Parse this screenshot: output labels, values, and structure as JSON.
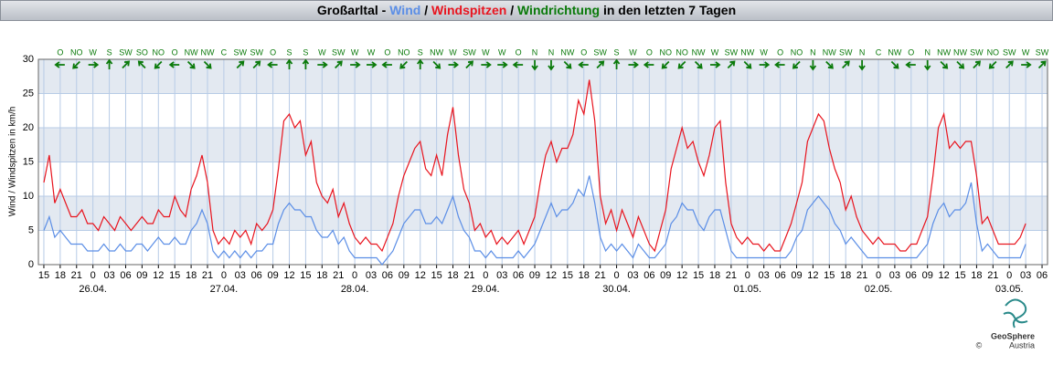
{
  "chart_data": {
    "type": "line",
    "title_prefix": "Großarltal -",
    "title_separator": "/",
    "title_suffix": "in den letzten 7 Tagen",
    "y_label": "Wind / Windspitzen in km/h",
    "logo": [
      "GeoSphere",
      "Austria"
    ],
    "copyright": "©",
    "x": [
      "25.04. 15:00",
      "25.04. 16:00",
      "25.04. 17:00",
      "25.04. 18:00",
      "25.04. 19:00",
      "25.04. 20:00",
      "25.04. 21:00",
      "25.04. 22:00",
      "25.04. 23:00",
      "26.04. 00:00",
      "26.04. 01:00",
      "26.04. 02:00",
      "26.04. 03:00",
      "26.04. 04:00",
      "26.04. 05:00",
      "26.04. 06:00",
      "26.04. 07:00",
      "26.04. 08:00",
      "26.04. 09:00",
      "26.04. 10:00",
      "26.04. 11:00",
      "26.04. 12:00",
      "26.04. 13:00",
      "26.04. 14:00",
      "26.04. 15:00",
      "26.04. 16:00",
      "26.04. 17:00",
      "26.04. 18:00",
      "26.04. 19:00",
      "26.04. 20:00",
      "26.04. 21:00",
      "26.04. 22:00",
      "26.04. 23:00",
      "27.04. 00:00",
      "27.04. 01:00",
      "27.04. 02:00",
      "27.04. 03:00",
      "27.04. 04:00",
      "27.04. 05:00",
      "27.04. 06:00",
      "27.04. 07:00",
      "27.04. 08:00",
      "27.04. 09:00",
      "27.04. 10:00",
      "27.04. 11:00",
      "27.04. 12:00",
      "27.04. 13:00",
      "27.04. 14:00",
      "27.04. 15:00",
      "27.04. 16:00",
      "27.04. 17:00",
      "27.04. 18:00",
      "27.04. 19:00",
      "27.04. 20:00",
      "27.04. 21:00",
      "27.04. 22:00",
      "27.04. 23:00",
      "28.04. 00:00",
      "28.04. 01:00",
      "28.04. 02:00",
      "28.04. 03:00",
      "28.04. 04:00",
      "28.04. 05:00",
      "28.04. 06:00",
      "28.04. 07:00",
      "28.04. 08:00",
      "28.04. 09:00",
      "28.04. 10:00",
      "28.04. 11:00",
      "28.04. 12:00",
      "28.04. 13:00",
      "28.04. 14:00",
      "28.04. 15:00",
      "28.04. 16:00",
      "28.04. 17:00",
      "28.04. 18:00",
      "28.04. 19:00",
      "28.04. 20:00",
      "28.04. 21:00",
      "28.04. 22:00",
      "28.04. 23:00",
      "29.04. 00:00",
      "29.04. 01:00",
      "29.04. 02:00",
      "29.04. 03:00",
      "29.04. 04:00",
      "29.04. 05:00",
      "29.04. 06:00",
      "29.04. 07:00",
      "29.04. 08:00",
      "29.04. 09:00",
      "29.04. 10:00",
      "29.04. 11:00",
      "29.04. 12:00",
      "29.04. 13:00",
      "29.04. 14:00",
      "29.04. 15:00",
      "29.04. 16:00",
      "29.04. 17:00",
      "29.04. 18:00",
      "29.04. 19:00",
      "29.04. 20:00",
      "29.04. 21:00",
      "29.04. 22:00",
      "29.04. 23:00",
      "30.04. 00:00",
      "30.04. 01:00",
      "30.04. 02:00",
      "30.04. 03:00",
      "30.04. 04:00",
      "30.04. 05:00",
      "30.04. 06:00",
      "30.04. 07:00",
      "30.04. 08:00",
      "30.04. 09:00",
      "30.04. 10:00",
      "30.04. 11:00",
      "30.04. 12:00",
      "30.04. 13:00",
      "30.04. 14:00",
      "30.04. 15:00",
      "30.04. 16:00",
      "30.04. 17:00",
      "30.04. 18:00",
      "30.04. 19:00",
      "30.04. 20:00",
      "30.04. 21:00",
      "30.04. 22:00",
      "30.04. 23:00",
      "01.05. 00:00",
      "01.05. 01:00",
      "01.05. 02:00",
      "01.05. 03:00",
      "01.05. 04:00",
      "01.05. 05:00",
      "01.05. 06:00",
      "01.05. 07:00",
      "01.05. 08:00",
      "01.05. 09:00",
      "01.05. 10:00",
      "01.05. 11:00",
      "01.05. 12:00",
      "01.05. 13:00",
      "01.05. 14:00",
      "01.05. 15:00",
      "01.05. 16:00",
      "01.05. 17:00",
      "01.05. 18:00",
      "01.05. 19:00",
      "01.05. 20:00",
      "01.05. 21:00",
      "01.05. 22:00",
      "01.05. 23:00",
      "02.05. 00:00",
      "02.05. 01:00",
      "02.05. 02:00",
      "02.05. 03:00",
      "02.05. 04:00",
      "02.05. 05:00",
      "02.05. 06:00",
      "02.05. 07:00",
      "02.05. 08:00",
      "02.05. 09:00",
      "02.05. 10:00",
      "02.05. 11:00",
      "02.05. 12:00",
      "02.05. 13:00",
      "02.05. 14:00",
      "02.05. 15:00",
      "02.05. 16:00",
      "02.05. 17:00",
      "02.05. 18:00",
      "02.05. 19:00",
      "02.05. 20:00",
      "02.05. 21:00",
      "02.05. 22:00",
      "02.05. 23:00",
      "03.05. 00:00",
      "03.05. 01:00",
      "03.05. 02:00",
      "03.05. 03:00"
    ],
    "series": [
      {
        "name": "Wind",
        "color": "#5b8ee6",
        "values": [
          5,
          7,
          4,
          5,
          4,
          3,
          3,
          3,
          2,
          2,
          2,
          3,
          2,
          2,
          3,
          2,
          2,
          3,
          3,
          2,
          3,
          4,
          3,
          3,
          4,
          3,
          3,
          5,
          6,
          8,
          6,
          2,
          1,
          2,
          1,
          2,
          1,
          2,
          1,
          2,
          2,
          3,
          3,
          6,
          8,
          9,
          8,
          8,
          7,
          7,
          5,
          4,
          4,
          5,
          3,
          4,
          2,
          1,
          1,
          1,
          1,
          1,
          0,
          1,
          2,
          4,
          6,
          7,
          8,
          8,
          6,
          6,
          7,
          6,
          8,
          10,
          7,
          5,
          4,
          2,
          2,
          1,
          2,
          1,
          1,
          1,
          1,
          2,
          1,
          2,
          3,
          5,
          7,
          9,
          7,
          8,
          8,
          9,
          11,
          10,
          13,
          9,
          4,
          2,
          3,
          2,
          3,
          2,
          1,
          3,
          2,
          1,
          1,
          2,
          3,
          6,
          7,
          9,
          8,
          8,
          6,
          5,
          7,
          8,
          8,
          5,
          2,
          1,
          1,
          1,
          1,
          1,
          1,
          1,
          1,
          1,
          1,
          2,
          4,
          5,
          8,
          9,
          10,
          9,
          8,
          6,
          5,
          3,
          4,
          3,
          2,
          1,
          1,
          1,
          1,
          1,
          1,
          1,
          1,
          1,
          1,
          2,
          3,
          6,
          8,
          9,
          7,
          8,
          8,
          9,
          12,
          6,
          2,
          3,
          2,
          1,
          1,
          1,
          1,
          1,
          3
        ]
      },
      {
        "name": "Windspitzen",
        "color": "#e8141e",
        "values": [
          12,
          16,
          9,
          11,
          9,
          7,
          7,
          8,
          6,
          6,
          5,
          7,
          6,
          5,
          7,
          6,
          5,
          6,
          7,
          6,
          6,
          8,
          7,
          7,
          10,
          8,
          7,
          11,
          13,
          16,
          12,
          5,
          3,
          4,
          3,
          5,
          4,
          5,
          3,
          6,
          5,
          6,
          8,
          14,
          21,
          22,
          20,
          21,
          16,
          18,
          12,
          10,
          9,
          11,
          7,
          9,
          6,
          4,
          3,
          4,
          3,
          3,
          2,
          4,
          6,
          10,
          13,
          15,
          17,
          18,
          14,
          13,
          16,
          13,
          19,
          23,
          16,
          11,
          9,
          5,
          6,
          4,
          5,
          3,
          4,
          3,
          4,
          5,
          3,
          5,
          7,
          12,
          16,
          18,
          15,
          17,
          17,
          19,
          24,
          22,
          27,
          21,
          10,
          6,
          8,
          5,
          8,
          6,
          4,
          7,
          5,
          3,
          2,
          5,
          8,
          14,
          17,
          20,
          17,
          18,
          15,
          13,
          16,
          20,
          21,
          12,
          6,
          4,
          3,
          4,
          3,
          3,
          2,
          3,
          2,
          2,
          4,
          6,
          9,
          12,
          18,
          20,
          22,
          21,
          17,
          14,
          12,
          8,
          10,
          7,
          5,
          4,
          3,
          4,
          3,
          3,
          3,
          2,
          2,
          3,
          3,
          5,
          7,
          13,
          20,
          22,
          17,
          18,
          17,
          18,
          18,
          13,
          6,
          7,
          5,
          3,
          3,
          3,
          3,
          4,
          6
        ]
      }
    ],
    "wind_direction": {
      "name": "Windrichtung",
      "color": "#0a7a0a",
      "labels": [
        "O",
        "NO",
        "W",
        "S",
        "SW",
        "SO",
        "NO",
        "O",
        "NW",
        "NW",
        "C",
        "SW",
        "SW",
        "O",
        "S",
        "S",
        "W",
        "SW",
        "W",
        "W",
        "O",
        "NO",
        "S",
        "NW",
        "W",
        "SW",
        "W",
        "W",
        "O",
        "N",
        "N",
        "NW",
        "O",
        "SW",
        "S",
        "W",
        "O",
        "NO",
        "NO",
        "NW",
        "W",
        "SW",
        "NW",
        "W",
        "O",
        "NO",
        "N",
        "NW",
        "SW",
        "N",
        "C",
        "NW",
        "O",
        "N",
        "NW",
        "NW",
        "SW",
        "NO",
        "SW",
        "W",
        "SW"
      ]
    },
    "xlim": [
      "25.04. 14:00",
      "03.05. 07:00"
    ],
    "xticks": [
      {
        "value": "25.04. 15:00",
        "label": "15"
      },
      {
        "value": "25.04. 18:00",
        "label": "18"
      },
      {
        "value": "25.04. 21:00",
        "label": "21"
      },
      {
        "value": "26.04. 00:00",
        "label": "0"
      },
      {
        "value": "26.04. 03:00",
        "label": "03"
      },
      {
        "value": "26.04. 06:00",
        "label": "06"
      },
      {
        "value": "26.04. 09:00",
        "label": "09"
      },
      {
        "value": "26.04. 12:00",
        "label": "12"
      },
      {
        "value": "26.04. 15:00",
        "label": "15"
      },
      {
        "value": "26.04. 18:00",
        "label": "18"
      },
      {
        "value": "26.04. 21:00",
        "label": "21"
      },
      {
        "value": "27.04. 00:00",
        "label": "0"
      },
      {
        "value": "27.04. 03:00",
        "label": "03"
      },
      {
        "value": "27.04. 06:00",
        "label": "06"
      },
      {
        "value": "27.04. 09:00",
        "label": "09"
      },
      {
        "value": "27.04. 12:00",
        "label": "12"
      },
      {
        "value": "27.04. 15:00",
        "label": "15"
      },
      {
        "value": "27.04. 18:00",
        "label": "18"
      },
      {
        "value": "27.04. 21:00",
        "label": "21"
      },
      {
        "value": "28.04. 00:00",
        "label": "0"
      },
      {
        "value": "28.04. 03:00",
        "label": "03"
      },
      {
        "value": "28.04. 06:00",
        "label": "06"
      },
      {
        "value": "28.04. 09:00",
        "label": "09"
      },
      {
        "value": "28.04. 12:00",
        "label": "12"
      },
      {
        "value": "28.04. 15:00",
        "label": "15"
      },
      {
        "value": "28.04. 18:00",
        "label": "18"
      },
      {
        "value": "28.04. 21:00",
        "label": "21"
      },
      {
        "value": "29.04. 00:00",
        "label": "0"
      },
      {
        "value": "29.04. 03:00",
        "label": "03"
      },
      {
        "value": "29.04. 06:00",
        "label": "06"
      },
      {
        "value": "29.04. 09:00",
        "label": "09"
      },
      {
        "value": "29.04. 12:00",
        "label": "12"
      },
      {
        "value": "29.04. 15:00",
        "label": "15"
      },
      {
        "value": "29.04. 18:00",
        "label": "18"
      },
      {
        "value": "29.04. 21:00",
        "label": "21"
      },
      {
        "value": "30.04. 00:00",
        "label": "0"
      },
      {
        "value": "30.04. 03:00",
        "label": "03"
      },
      {
        "value": "30.04. 06:00",
        "label": "06"
      },
      {
        "value": "30.04. 09:00",
        "label": "09"
      },
      {
        "value": "30.04. 12:00",
        "label": "12"
      },
      {
        "value": "30.04. 15:00",
        "label": "15"
      },
      {
        "value": "30.04. 18:00",
        "label": "18"
      },
      {
        "value": "30.04. 21:00",
        "label": "21"
      },
      {
        "value": "01.05. 00:00",
        "label": "0"
      },
      {
        "value": "01.05. 03:00",
        "label": "03"
      },
      {
        "value": "01.05. 06:00",
        "label": "06"
      },
      {
        "value": "01.05. 09:00",
        "label": "09"
      },
      {
        "value": "01.05. 12:00",
        "label": "12"
      },
      {
        "value": "01.05. 15:00",
        "label": "15"
      },
      {
        "value": "01.05. 18:00",
        "label": "18"
      },
      {
        "value": "01.05. 21:00",
        "label": "21"
      },
      {
        "value": "02.05. 00:00",
        "label": "0"
      },
      {
        "value": "02.05. 03:00",
        "label": "03"
      },
      {
        "value": "02.05. 06:00",
        "label": "06"
      },
      {
        "value": "02.05. 09:00",
        "label": "09"
      },
      {
        "value": "02.05. 12:00",
        "label": "12"
      },
      {
        "value": "02.05. 15:00",
        "label": "15"
      },
      {
        "value": "02.05. 18:00",
        "label": "18"
      },
      {
        "value": "02.05. 21:00",
        "label": "21"
      },
      {
        "value": "03.05. 00:00",
        "label": "0"
      },
      {
        "value": "03.05. 03:00",
        "label": "03"
      },
      {
        "value": "03.05. 06:00",
        "label": "06"
      }
    ],
    "date_labels": [
      {
        "value": "26.04. 00:00",
        "label": "26.04."
      },
      {
        "value": "27.04. 00:00",
        "label": "27.04."
      },
      {
        "value": "28.04. 00:00",
        "label": "28.04."
      },
      {
        "value": "29.04. 00:00",
        "label": "29.04."
      },
      {
        "value": "30.04. 00:00",
        "label": "30.04."
      },
      {
        "value": "01.05. 00:00",
        "label": "01.05."
      },
      {
        "value": "02.05. 00:00",
        "label": "02.05."
      },
      {
        "value": "03.05. 00:00",
        "label": "03.05."
      }
    ],
    "ylim": [
      0,
      30
    ],
    "yticks": [
      0,
      5,
      10,
      15,
      20,
      25,
      30
    ],
    "grid": true,
    "band_color": "#e3e9f1"
  }
}
